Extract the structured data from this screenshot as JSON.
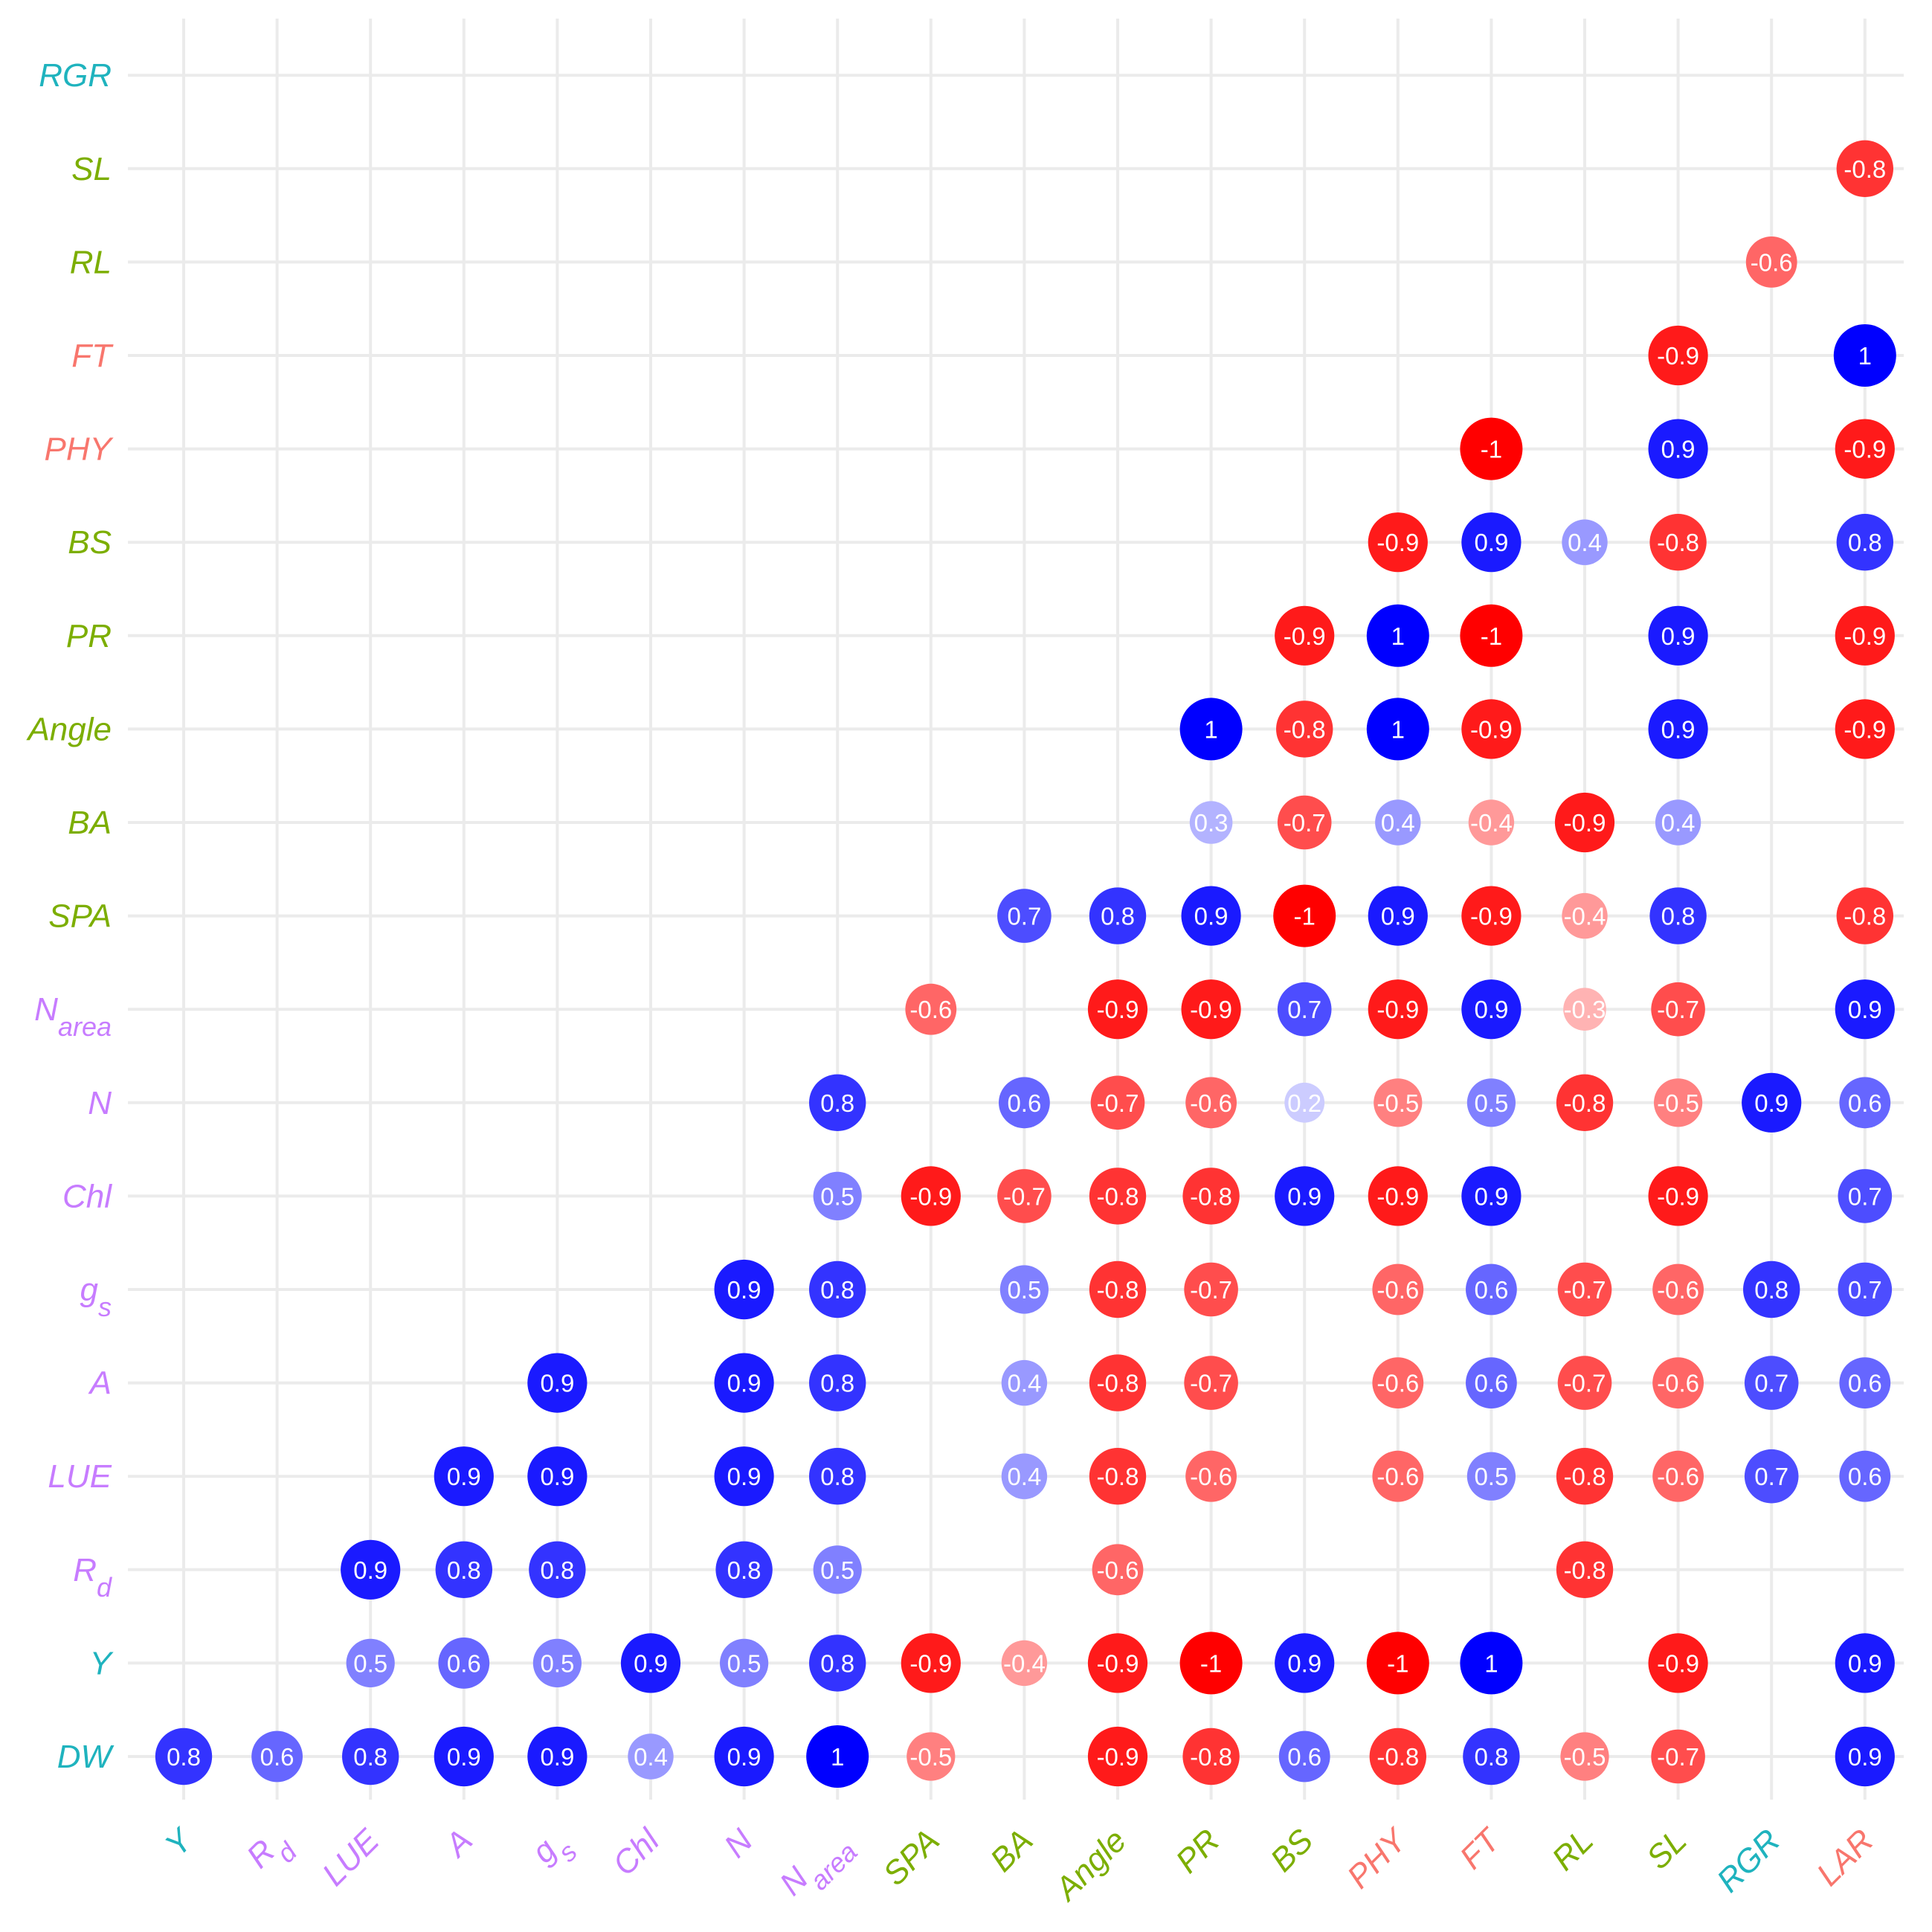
{
  "colors": {
    "cyan": "#1FB3BE",
    "purple": "#C77CFF",
    "green": "#7CAE00",
    "salmon": "#F8766D",
    "positive": "#0000FF",
    "negative": "#FF0000",
    "grid": "#EBEBEB"
  },
  "chart_data": {
    "type": "heatmap",
    "title": "",
    "xlabel": "",
    "ylabel": "",
    "grid": true,
    "legend": "none",
    "range": [
      -1,
      1
    ],
    "x": [
      {
        "id": "Y",
        "label": "Y",
        "color": "cyan"
      },
      {
        "id": "Rd",
        "label": "R",
        "sub": "d",
        "color": "purple"
      },
      {
        "id": "LUE",
        "label": "LUE",
        "color": "purple"
      },
      {
        "id": "A",
        "label": "A",
        "color": "purple"
      },
      {
        "id": "gs",
        "label": "g",
        "sub": "s",
        "color": "purple"
      },
      {
        "id": "Chl",
        "label": "Chl",
        "color": "purple"
      },
      {
        "id": "N",
        "label": "N",
        "color": "purple"
      },
      {
        "id": "Narea",
        "label": "N",
        "sub": "area",
        "color": "purple"
      },
      {
        "id": "SPA",
        "label": "SPA",
        "color": "green"
      },
      {
        "id": "BA",
        "label": "BA",
        "color": "green"
      },
      {
        "id": "Angle",
        "label": "Angle",
        "color": "green"
      },
      {
        "id": "PR",
        "label": "PR",
        "color": "green"
      },
      {
        "id": "BS",
        "label": "BS",
        "color": "green"
      },
      {
        "id": "PHY",
        "label": "PHY",
        "color": "salmon"
      },
      {
        "id": "FT",
        "label": "FT",
        "color": "salmon"
      },
      {
        "id": "RL",
        "label": "RL",
        "color": "green"
      },
      {
        "id": "SL",
        "label": "SL",
        "color": "green"
      },
      {
        "id": "RGR",
        "label": "RGR",
        "color": "cyan"
      },
      {
        "id": "LAR",
        "label": "LAR",
        "color": "salmon"
      }
    ],
    "y": [
      {
        "id": "DW",
        "label": "DW",
        "color": "cyan"
      },
      {
        "id": "Y",
        "label": "Y",
        "color": "cyan"
      },
      {
        "id": "Rd",
        "label": "R",
        "sub": "d",
        "color": "purple"
      },
      {
        "id": "LUE",
        "label": "LUE",
        "color": "purple"
      },
      {
        "id": "A",
        "label": "A",
        "color": "purple"
      },
      {
        "id": "gs",
        "label": "g",
        "sub": "s",
        "color": "purple"
      },
      {
        "id": "Chl",
        "label": "Chl",
        "color": "purple"
      },
      {
        "id": "N",
        "label": "N",
        "color": "purple"
      },
      {
        "id": "Narea",
        "label": "N",
        "sub": "area",
        "color": "purple"
      },
      {
        "id": "SPA",
        "label": "SPA",
        "color": "green"
      },
      {
        "id": "BA",
        "label": "BA",
        "color": "green"
      },
      {
        "id": "Angle",
        "label": "Angle",
        "color": "green"
      },
      {
        "id": "PR",
        "label": "PR",
        "color": "green"
      },
      {
        "id": "BS",
        "label": "BS",
        "color": "green"
      },
      {
        "id": "PHY",
        "label": "PHY",
        "color": "salmon"
      },
      {
        "id": "FT",
        "label": "FT",
        "color": "salmon"
      },
      {
        "id": "RL",
        "label": "RL",
        "color": "green"
      },
      {
        "id": "SL",
        "label": "SL",
        "color": "green"
      },
      {
        "id": "RGR",
        "label": "RGR",
        "color": "cyan"
      }
    ],
    "values": [
      [
        "0.8",
        "0.6",
        "0.8",
        "0.9",
        "0.9",
        "0.4",
        "0.9",
        "1",
        "-0.5",
        null,
        "-0.9",
        "-0.8",
        "0.6",
        "-0.8",
        "0.8",
        "-0.5",
        "-0.7",
        null,
        "0.9"
      ],
      [
        null,
        null,
        "0.5",
        "0.6",
        "0.5",
        "0.9",
        "0.5",
        "0.8",
        "-0.9",
        "-0.4",
        "-0.9",
        "-1",
        "0.9",
        "-1",
        "1",
        null,
        "-0.9",
        null,
        "0.9"
      ],
      [
        null,
        null,
        "0.9",
        "0.8",
        "0.8",
        null,
        "0.8",
        "0.5",
        null,
        null,
        "-0.6",
        null,
        null,
        null,
        null,
        "-0.8",
        null,
        null,
        null
      ],
      [
        null,
        null,
        null,
        "0.9",
        "0.9",
        null,
        "0.9",
        "0.8",
        null,
        "0.4",
        "-0.8",
        "-0.6",
        null,
        "-0.6",
        "0.5",
        "-0.8",
        "-0.6",
        "0.7",
        "0.6"
      ],
      [
        null,
        null,
        null,
        null,
        "0.9",
        null,
        "0.9",
        "0.8",
        null,
        "0.4",
        "-0.8",
        "-0.7",
        null,
        "-0.6",
        "0.6",
        "-0.7",
        "-0.6",
        "0.7",
        "0.6"
      ],
      [
        null,
        null,
        null,
        null,
        null,
        null,
        "0.9",
        "0.8",
        null,
        "0.5",
        "-0.8",
        "-0.7",
        null,
        "-0.6",
        "0.6",
        "-0.7",
        "-0.6",
        "0.8",
        "0.7"
      ],
      [
        null,
        null,
        null,
        null,
        null,
        null,
        null,
        "0.5",
        "-0.9",
        "-0.7",
        "-0.8",
        "-0.8",
        "0.9",
        "-0.9",
        "0.9",
        null,
        "-0.9",
        null,
        "0.7"
      ],
      [
        null,
        null,
        null,
        null,
        null,
        null,
        null,
        "0.8",
        null,
        "0.6",
        "-0.7",
        "-0.6",
        "0.2",
        "-0.5",
        "0.5",
        "-0.8",
        "-0.5",
        "0.9",
        "0.6"
      ],
      [
        null,
        null,
        null,
        null,
        null,
        null,
        null,
        null,
        "-0.6",
        null,
        "-0.9",
        "-0.9",
        "0.7",
        "-0.9",
        "0.9",
        "-0.3",
        "-0.7",
        null,
        "0.9"
      ],
      [
        null,
        null,
        null,
        null,
        null,
        null,
        null,
        null,
        null,
        "0.7",
        "0.8",
        "0.9",
        "-1",
        "0.9",
        "-0.9",
        "-0.4",
        "0.8",
        null,
        "-0.8"
      ],
      [
        null,
        null,
        null,
        null,
        null,
        null,
        null,
        null,
        null,
        null,
        null,
        "0.3",
        "-0.7",
        "0.4",
        "-0.4",
        "-0.9",
        "0.4",
        null,
        null
      ],
      [
        null,
        null,
        null,
        null,
        null,
        null,
        null,
        null,
        null,
        null,
        null,
        "1",
        "-0.8",
        "1",
        "-0.9",
        null,
        "0.9",
        null,
        "-0.9"
      ],
      [
        null,
        null,
        null,
        null,
        null,
        null,
        null,
        null,
        null,
        null,
        null,
        null,
        "-0.9",
        "1",
        "-1",
        null,
        "0.9",
        null,
        "-0.9"
      ],
      [
        null,
        null,
        null,
        null,
        null,
        null,
        null,
        null,
        null,
        null,
        null,
        null,
        null,
        "-0.9",
        "0.9",
        "0.4",
        "-0.8",
        null,
        "0.8"
      ],
      [
        null,
        null,
        null,
        null,
        null,
        null,
        null,
        null,
        null,
        null,
        null,
        null,
        null,
        null,
        "-1",
        null,
        "0.9",
        null,
        "-0.9"
      ],
      [
        null,
        null,
        null,
        null,
        null,
        null,
        null,
        null,
        null,
        null,
        null,
        null,
        null,
        null,
        null,
        null,
        "-0.9",
        null,
        "1"
      ],
      [
        null,
        null,
        null,
        null,
        null,
        null,
        null,
        null,
        null,
        null,
        null,
        null,
        null,
        null,
        null,
        null,
        null,
        "-0.6",
        null
      ],
      [
        null,
        null,
        null,
        null,
        null,
        null,
        null,
        null,
        null,
        null,
        null,
        null,
        null,
        null,
        null,
        null,
        null,
        null,
        "-0.8"
      ],
      [
        null,
        null,
        null,
        null,
        null,
        null,
        null,
        null,
        null,
        null,
        null,
        null,
        null,
        null,
        null,
        null,
        null,
        null,
        null
      ]
    ]
  }
}
